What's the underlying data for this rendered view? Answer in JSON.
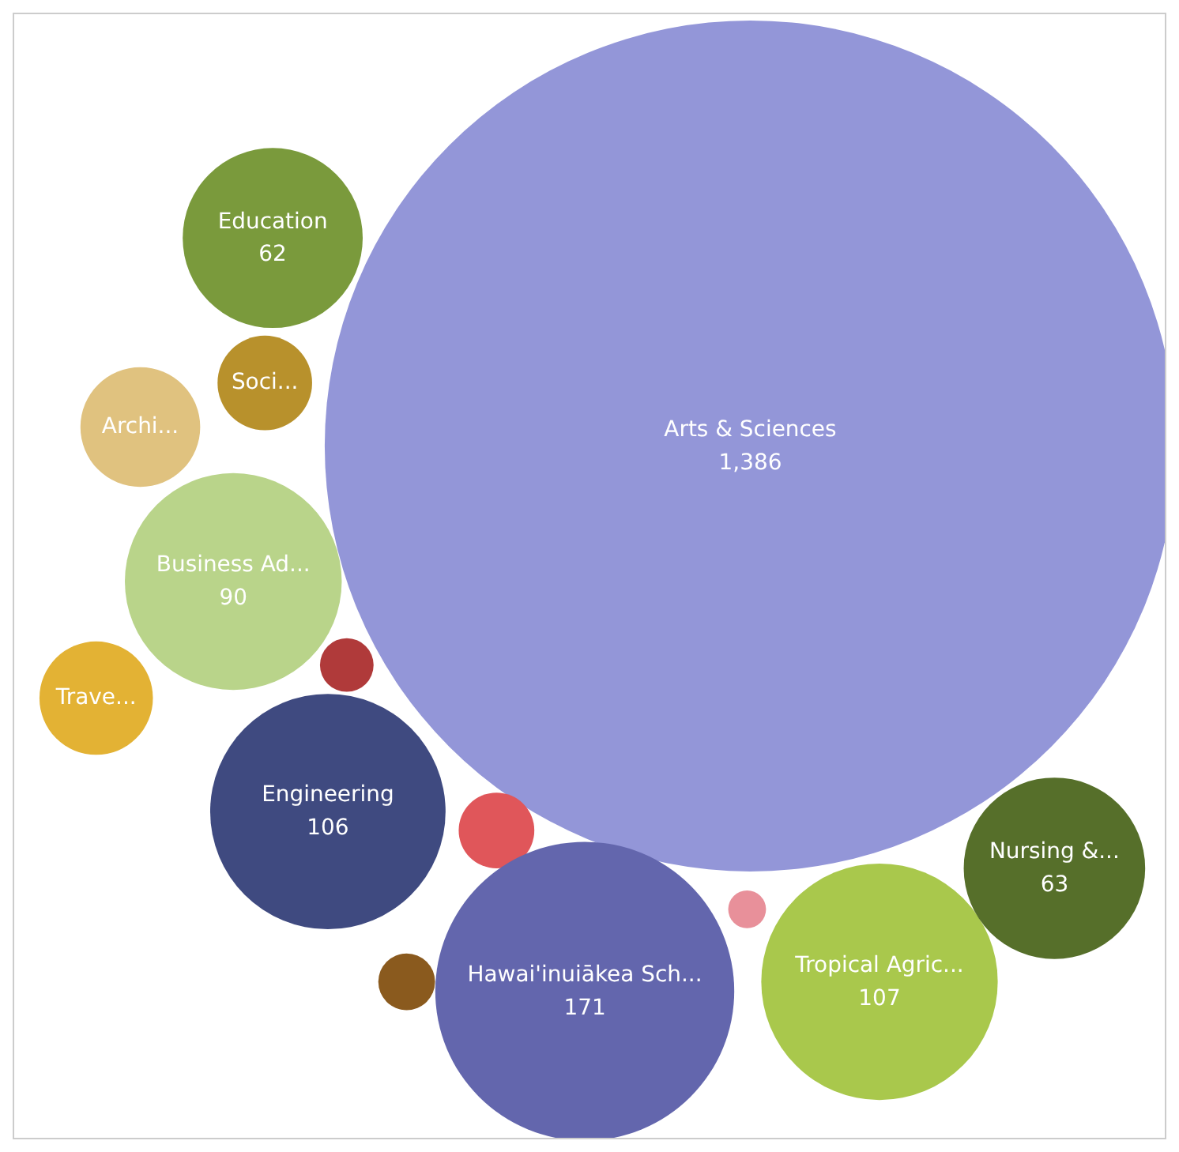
{
  "chart_data": {
    "type": "other",
    "categories": [
      "Arts & Sciences",
      "Education",
      "Soci...",
      "Archi...",
      "Business Ad...",
      "Trave...",
      null,
      "Engineering",
      null,
      null,
      "Hawai'inuiākea Sch...",
      null,
      "Tropical Agric...",
      "Nursing &..."
    ],
    "values": [
      1386,
      62,
      null,
      null,
      90,
      null,
      null,
      106,
      null,
      null,
      171,
      null,
      107,
      63
    ],
    "colors": [
      "#9396d8",
      "#7a9a3c",
      "#b8912c",
      "#e0c27f",
      "#b9d48a",
      "#e3b234",
      "#b03a3a",
      "#3f4a80",
      "#e0565a",
      "#8a5a1e",
      "#6366ad",
      "#e8909a",
      "#a9c84c",
      "#566f2a"
    ],
    "value_labels": [
      "1,386",
      "62",
      null,
      null,
      "90",
      null,
      null,
      "106",
      null,
      null,
      "171",
      null,
      "107",
      "63"
    ]
  }
}
